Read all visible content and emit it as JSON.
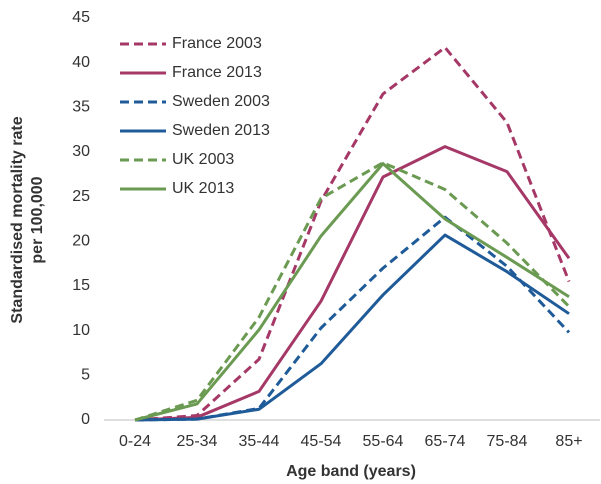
{
  "chart_data": {
    "type": "line",
    "xlabel": "Age band (years)",
    "ylabel": [
      "Standardised mortality rate",
      "per 100,000"
    ],
    "categories": [
      "0-24",
      "25-34",
      "35-44",
      "45-54",
      "55-64",
      "65-74",
      "75-84",
      "85+"
    ],
    "ylim": [
      0,
      45
    ],
    "yticks": [
      0,
      5,
      10,
      15,
      20,
      25,
      30,
      35,
      40,
      45
    ],
    "legend": "top-left",
    "series": [
      {
        "name": "France 2003",
        "color": "#a53866",
        "dashed": true,
        "values": [
          0,
          0.5,
          6.8,
          24.5,
          36.5,
          41.7,
          33.3,
          15.5
        ]
      },
      {
        "name": "France 2013",
        "color": "#a53866",
        "dashed": false,
        "values": [
          0,
          0.3,
          3.2,
          13.3,
          27.2,
          30.6,
          27.8,
          18.1
        ]
      },
      {
        "name": "Sweden 2003",
        "color": "#1f5b98",
        "dashed": true,
        "values": [
          0,
          0.1,
          1.3,
          10.3,
          17,
          22.7,
          17.2,
          9.8
        ]
      },
      {
        "name": "Sweden 2013",
        "color": "#1f5b98",
        "dashed": false,
        "values": [
          0,
          0.1,
          1.2,
          6.3,
          14,
          20.7,
          16.6,
          11.9
        ]
      },
      {
        "name": "UK 2003",
        "color": "#6b9a52",
        "dashed": true,
        "values": [
          0,
          2.2,
          11.5,
          24.8,
          28.8,
          25.8,
          19.8,
          12.7
        ]
      },
      {
        "name": "UK 2013",
        "color": "#6b9a52",
        "dashed": false,
        "values": [
          0,
          1.8,
          10.1,
          20.6,
          28.7,
          22.5,
          18.2,
          13.8
        ]
      }
    ]
  }
}
